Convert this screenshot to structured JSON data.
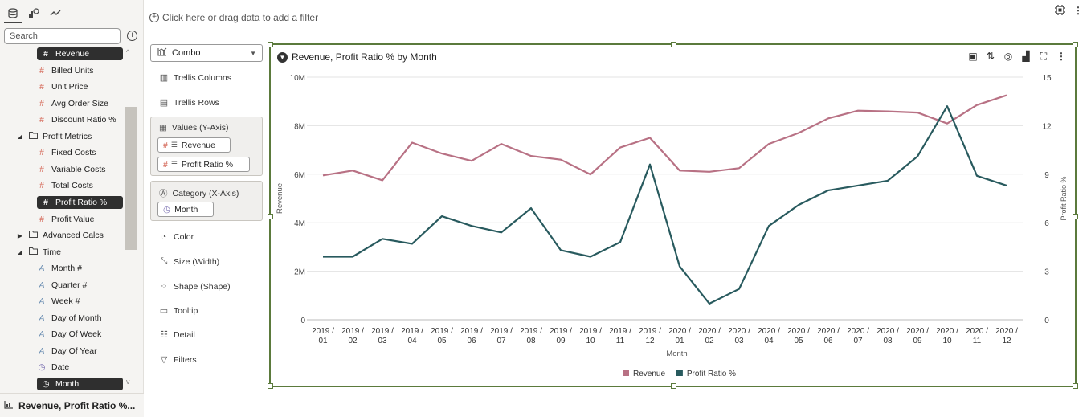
{
  "left_panel": {
    "search_placeholder": "Search",
    "footer_title": "Revenue, Profit Ratio %...",
    "tree": [
      {
        "label": "Revenue",
        "type": "num",
        "indent": 1,
        "selected": true
      },
      {
        "label": "Billed Units",
        "type": "num",
        "indent": 1
      },
      {
        "label": "Unit Price",
        "type": "num",
        "indent": 1
      },
      {
        "label": "Avg Order Size",
        "type": "num",
        "indent": 1
      },
      {
        "label": "Discount Ratio %",
        "type": "num",
        "indent": 1
      },
      {
        "label": "Profit Metrics",
        "type": "folder",
        "indent": 0,
        "expanded": true
      },
      {
        "label": "Fixed Costs",
        "type": "num",
        "indent": 1
      },
      {
        "label": "Variable Costs",
        "type": "num",
        "indent": 1
      },
      {
        "label": "Total Costs",
        "type": "num",
        "indent": 1
      },
      {
        "label": "Profit Ratio %",
        "type": "num",
        "indent": 1,
        "selected": true
      },
      {
        "label": "Profit Value",
        "type": "num",
        "indent": 1
      },
      {
        "label": "Advanced Calcs",
        "type": "folder",
        "indent": 0,
        "expanded": false
      },
      {
        "label": "Time",
        "type": "folder",
        "indent": 0,
        "expanded": true
      },
      {
        "label": "Month #",
        "type": "attr",
        "indent": 1
      },
      {
        "label": "Quarter #",
        "type": "attr",
        "indent": 1
      },
      {
        "label": "Week #",
        "type": "attr",
        "indent": 1
      },
      {
        "label": "Day of Month",
        "type": "attr",
        "indent": 1
      },
      {
        "label": "Day Of Week",
        "type": "attr",
        "indent": 1
      },
      {
        "label": "Day Of Year",
        "type": "attr",
        "indent": 1
      },
      {
        "label": "Date",
        "type": "date",
        "indent": 1
      },
      {
        "label": "Month",
        "type": "date",
        "indent": 1,
        "selected": true
      }
    ]
  },
  "filter_bar": {
    "text": "Click here or drag data to add a filter"
  },
  "grammar": {
    "chart_type": "Combo",
    "trellis_columns": "Trellis Columns",
    "trellis_rows": "Trellis Rows",
    "values_header": "Values (Y-Axis)",
    "values": [
      "Revenue",
      "Profit Ratio %"
    ],
    "category_header": "Category (X-Axis)",
    "category": "Month",
    "color": "Color",
    "size": "Size (Width)",
    "shape": "Shape (Shape)",
    "tooltip": "Tooltip",
    "detail": "Detail",
    "filters": "Filters"
  },
  "chart_data": {
    "type": "line",
    "title": "Revenue, Profit Ratio % by Month",
    "xlabel": "Month",
    "ylabel": "Revenue",
    "y2label": "Profit Ratio %",
    "ylim": [
      0,
      10000000
    ],
    "y2lim": [
      0,
      15
    ],
    "y_ticks": [
      "0",
      "2M",
      "4M",
      "6M",
      "8M",
      "10M"
    ],
    "y2_ticks": [
      "0",
      "3",
      "6",
      "9",
      "12",
      "15"
    ],
    "categories": [
      "2019 / 01",
      "2019 / 02",
      "2019 / 03",
      "2019 / 04",
      "2019 / 05",
      "2019 / 06",
      "2019 / 07",
      "2019 / 08",
      "2019 / 09",
      "2019 / 10",
      "2019 / 11",
      "2019 / 12",
      "2020 / 01",
      "2020 / 02",
      "2020 / 03",
      "2020 / 04",
      "2020 / 05",
      "2020 / 06",
      "2020 / 07",
      "2020 / 08",
      "2020 / 09",
      "2020 / 10",
      "2020 / 11",
      "2020 / 12"
    ],
    "series": [
      {
        "name": "Revenue",
        "axis": "y1",
        "color": "#b87184",
        "values": [
          5950000,
          6150000,
          5750000,
          7300000,
          6850000,
          6550000,
          7250000,
          6750000,
          6600000,
          5990000,
          7100000,
          7500000,
          6150000,
          6100000,
          6250000,
          7250000,
          7700000,
          8300000,
          8620000,
          8590000,
          8540000,
          8090000,
          8850000,
          9250000
        ]
      },
      {
        "name": "Profit Ratio %",
        "axis": "y2",
        "color": "#285a5e",
        "values": [
          3.9,
          3.9,
          5.0,
          4.7,
          6.4,
          5.8,
          5.4,
          6.9,
          4.3,
          3.9,
          4.8,
          9.6,
          3.3,
          1.0,
          1.9,
          5.8,
          7.1,
          8.0,
          8.3,
          8.6,
          10.1,
          13.2,
          8.9,
          8.3
        ]
      }
    ],
    "legend_position": "bottom-center",
    "grid": true
  }
}
